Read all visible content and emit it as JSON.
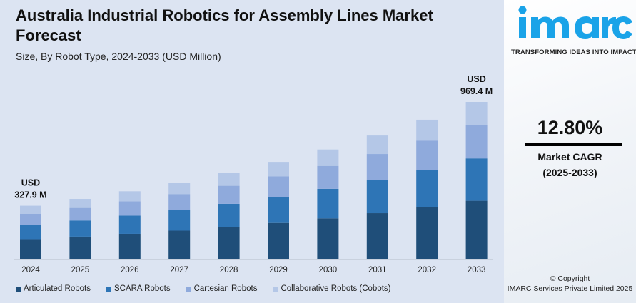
{
  "chart_data": {
    "type": "bar",
    "stacked": true,
    "title": "Australia Industrial Robotics for Assembly Lines Market Forecast",
    "subtitle": "Size, By Robot Type, 2024-2033 (USD Million)",
    "categories": [
      "2024",
      "2025",
      "2026",
      "2027",
      "2028",
      "2029",
      "2030",
      "2031",
      "2032",
      "2033"
    ],
    "series": [
      {
        "name": "Articulated Robots",
        "color": "#1f4e79",
        "values": [
          121.3,
          136.9,
          154.4,
          174.1,
          196.4,
          221.6,
          249.9,
          281.9,
          318.0,
          358.7
        ]
      },
      {
        "name": "SCARA Robots",
        "color": "#2e75b6",
        "values": [
          88.5,
          99.9,
          112.6,
          127.1,
          143.3,
          161.7,
          182.4,
          205.7,
          232.0,
          261.7
        ]
      },
      {
        "name": "Cartesian Robots",
        "color": "#8faadc",
        "values": [
          68.9,
          77.7,
          87.6,
          98.8,
          111.5,
          125.7,
          141.8,
          160.0,
          180.5,
          203.6
        ]
      },
      {
        "name": "Collaborative Robots (Cobots)",
        "color": "#b4c7e7",
        "values": [
          49.2,
          55.5,
          62.6,
          70.6,
          79.6,
          89.8,
          101.3,
          114.3,
          128.9,
          145.4
        ]
      }
    ],
    "annotations": [
      {
        "category": "2024",
        "line1": "USD",
        "line2": "327.9 M"
      },
      {
        "category": "2033",
        "line1": "USD",
        "line2": "969.4 M"
      }
    ],
    "legend_position": "bottom",
    "grid": false,
    "y_axis_visible": false
  },
  "brand": {
    "name": "imarc",
    "tagline": "TRANSFORMING IDEAS INTO IMPACT",
    "color": "#1aa3e8"
  },
  "stats": {
    "cagr": "12.80%",
    "label": "Market CAGR",
    "period": "(2025-2033)"
  },
  "footer": {
    "copyright": "© Copyright",
    "company": "IMARC Services Private Limited 2025"
  }
}
